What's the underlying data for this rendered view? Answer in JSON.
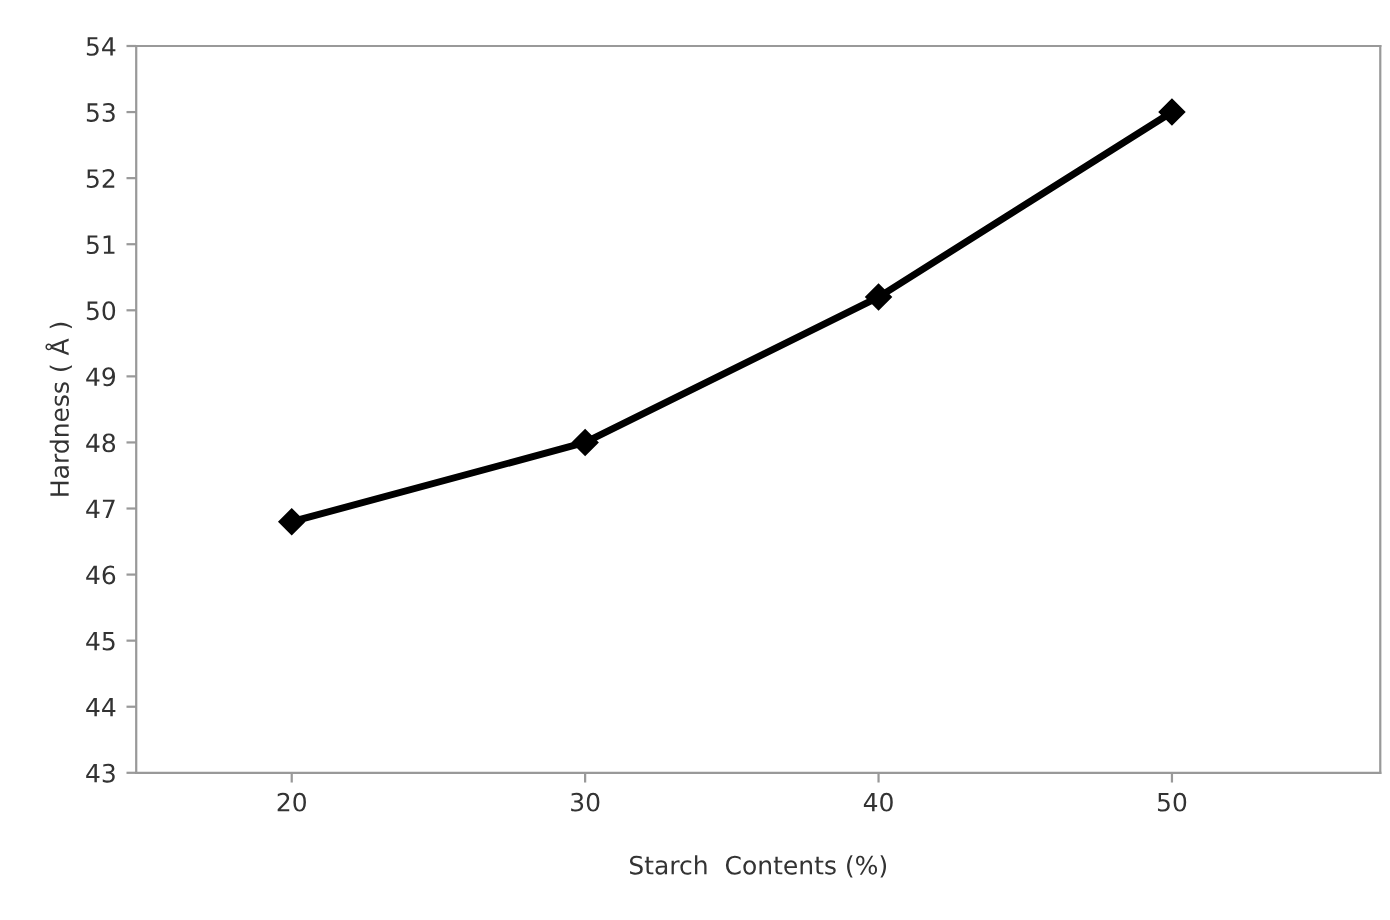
{
  "chart_data": {
    "type": "line",
    "xlabel": "Starch  Contents (%)",
    "ylabel": "Hardness ( Å )",
    "x": [
      20,
      30,
      40,
      50
    ],
    "series": [
      {
        "color": "#000000",
        "values": [
          46.8,
          48.0,
          50.2,
          53.0
        ]
      }
    ],
    "xlim": [
      14.7,
      57.1
    ],
    "xticks": [
      20,
      30,
      40,
      50
    ],
    "ylim": [
      43,
      54
    ],
    "yticks": [
      43,
      44,
      45,
      46,
      47,
      48,
      49,
      50,
      51,
      52,
      53,
      54
    ],
    "marker": "diamond",
    "line_style": "solid",
    "grid": false
  }
}
